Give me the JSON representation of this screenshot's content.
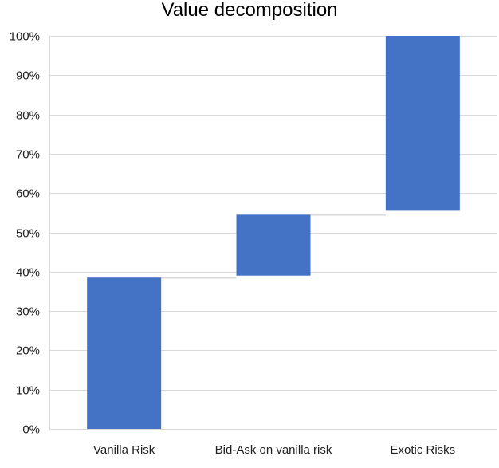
{
  "chart_data": {
    "type": "bar",
    "subtype": "waterfall",
    "title": "Value decomposition",
    "xlabel": "",
    "ylabel": "",
    "categories": [
      "Vanilla Risk",
      "Bid-Ask on vanilla risk",
      "Exotic Risks"
    ],
    "series": [
      {
        "start": [
          0,
          39,
          55.5
        ],
        "end": [
          38.5,
          54.5,
          100
        ]
      }
    ],
    "ylim": [
      0,
      100
    ],
    "yticks": [
      0,
      10,
      20,
      30,
      40,
      50,
      60,
      70,
      80,
      90,
      100
    ],
    "ytick_labels": [
      "0%",
      "10%",
      "20%",
      "30%",
      "40%",
      "50%",
      "60%",
      "70%",
      "80%",
      "90%",
      "100%"
    ],
    "grid": true,
    "legend": "none",
    "bar_color": "#4472C4",
    "gridline_color": "#d9d9d9",
    "connector_color": "#d9d9d9"
  }
}
